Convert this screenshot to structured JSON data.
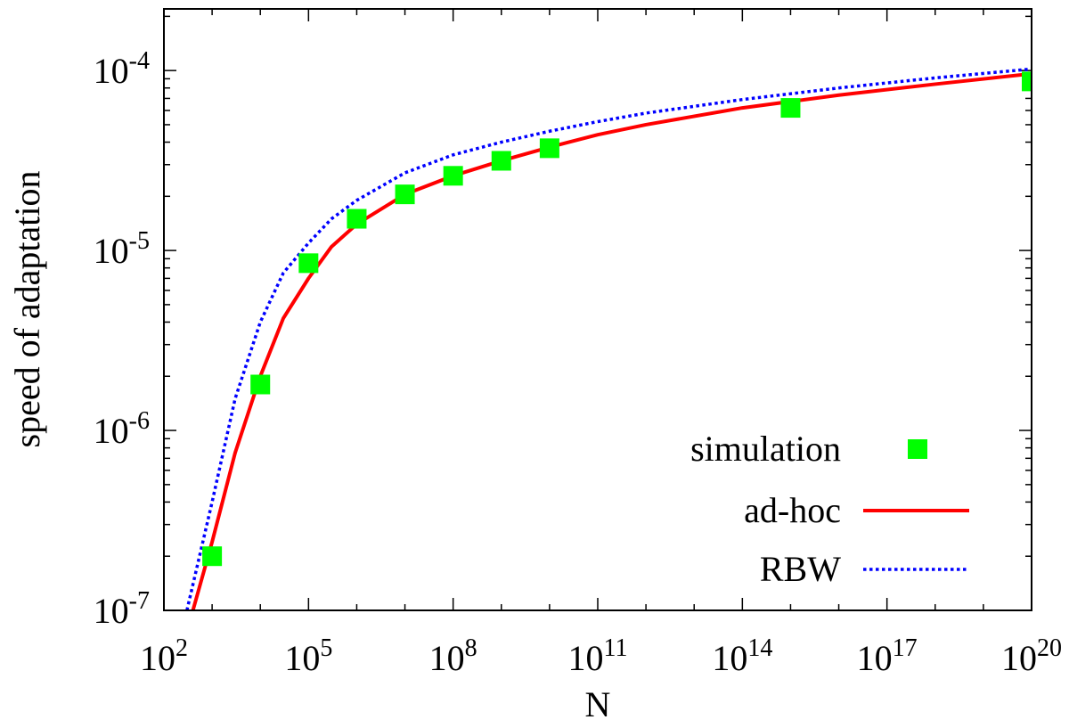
{
  "chart_data": {
    "type": "scatter",
    "title": "",
    "xlabel": "N",
    "ylabel": "speed of adaptation",
    "x_scale": "log",
    "y_scale": "log",
    "xlim": [
      100,
      1e+20
    ],
    "ylim": [
      1e-07,
      0.00022
    ],
    "grid": false,
    "legend_position": "bottom-right",
    "x_ticks": [
      {
        "value": 100,
        "base": "10",
        "exp": "2"
      },
      {
        "value": 100000.0,
        "base": "10",
        "exp": "5"
      },
      {
        "value": 100000000.0,
        "base": "10",
        "exp": "8"
      },
      {
        "value": 100000000000.0,
        "base": "10",
        "exp": "11"
      },
      {
        "value": 100000000000000.0,
        "base": "10",
        "exp": "14"
      },
      {
        "value": 1e+17,
        "base": "10",
        "exp": "17"
      },
      {
        "value": 1e+20,
        "base": "10",
        "exp": "20"
      }
    ],
    "y_ticks": [
      {
        "value": 1e-07,
        "base": "10",
        "exp": "-7"
      },
      {
        "value": 1e-06,
        "base": "10",
        "exp": "-6"
      },
      {
        "value": 1e-05,
        "base": "10",
        "exp": "-5"
      },
      {
        "value": 0.0001,
        "base": "10",
        "exp": "-4"
      }
    ],
    "series": [
      {
        "name": "simulation",
        "style": "markers",
        "marker": "square",
        "color": "#00ff00",
        "x": [
          1000,
          10000,
          100000,
          1000000,
          10000000,
          100000000,
          1000000000,
          10000000000,
          1000000000000000.0,
          1e+20
        ],
        "y": [
          2e-07,
          1.8e-06,
          8.5e-06,
          1.5e-05,
          2.05e-05,
          2.6e-05,
          3.15e-05,
          3.7e-05,
          6.2e-05,
          8.7e-05
        ]
      },
      {
        "name": "ad-hoc",
        "style": "solid",
        "color": "#ff0000",
        "x": [
          400,
          1000,
          3000,
          10000,
          30000,
          100000,
          300000,
          1000000,
          10000000,
          100000000,
          1000000000,
          10000000000,
          100000000000,
          1000000000000.0,
          100000000000000.0,
          1e+16,
          1e+18,
          1e+20
        ],
        "y": [
          1e-07,
          2.4e-07,
          7.5e-07,
          2e-06,
          4.2e-06,
          7e-06,
          1.05e-05,
          1.4e-05,
          2.05e-05,
          2.6e-05,
          3.15e-05,
          3.75e-05,
          4.4e-05,
          5e-05,
          6.2e-05,
          7.3e-05,
          8.4e-05,
          9.6e-05
        ]
      },
      {
        "name": "RBW",
        "style": "dotted",
        "color": "#0000ff",
        "x": [
          300,
          1000,
          3000,
          10000,
          30000,
          100000,
          300000,
          1000000,
          10000000,
          100000000,
          1000000000,
          10000000000,
          100000000000,
          1000000000000.0,
          100000000000000.0,
          1e+16,
          1e+18,
          1e+20
        ],
        "y": [
          1e-07,
          4e-07,
          1.5e-06,
          4e-06,
          7.5e-06,
          1.1e-05,
          1.5e-05,
          1.9e-05,
          2.7e-05,
          3.4e-05,
          4e-05,
          4.6e-05,
          5.2e-05,
          5.8e-05,
          6.9e-05,
          8e-05,
          9.1e-05,
          0.000102
        ]
      }
    ]
  }
}
